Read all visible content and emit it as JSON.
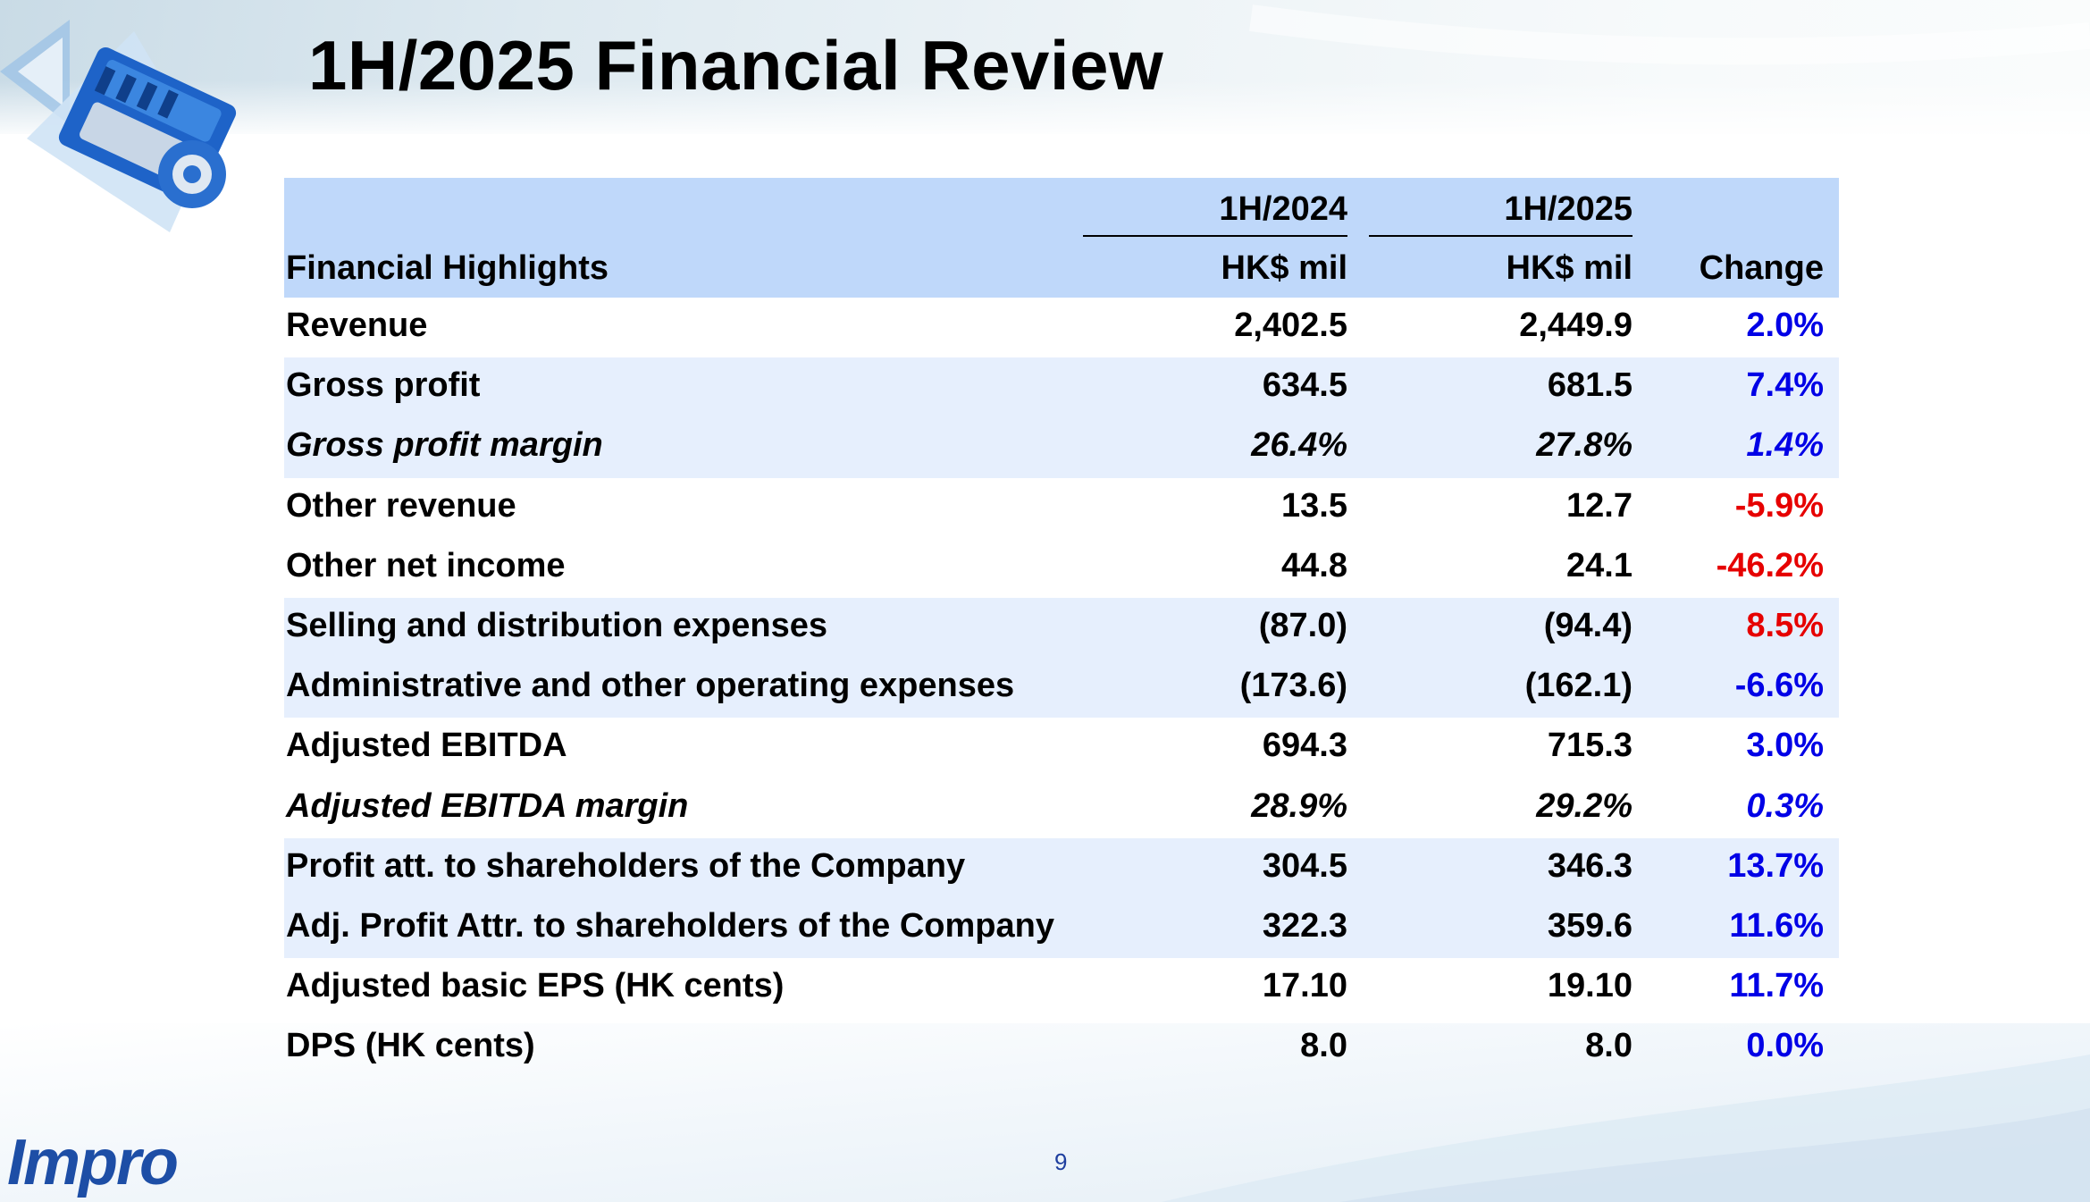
{
  "title": "1H/2025 Financial Review",
  "brand": "Impro",
  "page_number": "9",
  "colors": {
    "positive": "#0000e6",
    "negative": "#e60000",
    "header_band": "#bfd8fa",
    "row_shade": "#e6effd",
    "brand": "#1d4ea6"
  },
  "table": {
    "header": {
      "label": "Financial Highlights",
      "period1": "1H/2024",
      "period2": "1H/2025",
      "unit1": "HK$ mil",
      "unit2": "HK$ mil",
      "change": "Change"
    },
    "rows": [
      {
        "label": "Revenue",
        "v2024": "2,402.5",
        "v2025": "2,449.9",
        "change": "2.0%",
        "direction": "pos",
        "italic": false,
        "shade": false
      },
      {
        "label": "Gross profit",
        "v2024": "634.5",
        "v2025": "681.5",
        "change": "7.4%",
        "direction": "pos",
        "italic": false,
        "shade": true
      },
      {
        "label": "Gross profit margin",
        "v2024": "26.4%",
        "v2025": "27.8%",
        "change": "1.4%",
        "direction": "pos",
        "italic": true,
        "shade": true
      },
      {
        "label": "Other revenue",
        "v2024": "13.5",
        "v2025": "12.7",
        "change": "-5.9%",
        "direction": "neg",
        "italic": false,
        "shade": false
      },
      {
        "label": "Other net income",
        "v2024": "44.8",
        "v2025": "24.1",
        "change": "-46.2%",
        "direction": "neg",
        "italic": false,
        "shade": false
      },
      {
        "label": "Selling and distribution expenses",
        "v2024": "(87.0)",
        "v2025": "(94.4)",
        "change": "8.5%",
        "direction": "neg",
        "italic": false,
        "shade": true
      },
      {
        "label": "Administrative and other operating expenses",
        "v2024": "(173.6)",
        "v2025": "(162.1)",
        "change": "-6.6%",
        "direction": "pos",
        "italic": false,
        "shade": true
      },
      {
        "label": "Adjusted EBITDA",
        "v2024": "694.3",
        "v2025": "715.3",
        "change": "3.0%",
        "direction": "pos",
        "italic": false,
        "shade": false
      },
      {
        "label": "Adjusted EBITDA margin",
        "v2024": "28.9%",
        "v2025": "29.2%",
        "change": "0.3%",
        "direction": "pos",
        "italic": true,
        "shade": false
      },
      {
        "label": "Profit att. to shareholders of the Company",
        "v2024": "304.5",
        "v2025": "346.3",
        "change": "13.7%",
        "direction": "pos",
        "italic": false,
        "shade": true
      },
      {
        "label": "Adj. Profit Attr. to shareholders of the Company",
        "v2024": "322.3",
        "v2025": "359.6",
        "change": "11.6%",
        "direction": "pos",
        "italic": false,
        "shade": true
      },
      {
        "label": "Adjusted basic EPS (HK cents)",
        "v2024": "17.10",
        "v2025": "19.10",
        "change": "11.7%",
        "direction": "pos",
        "italic": false,
        "shade": false
      },
      {
        "label": "DPS (HK cents)",
        "v2024": "8.0",
        "v2025": "8.0",
        "change": "0.0%",
        "direction": "pos",
        "italic": false,
        "shade": false
      }
    ]
  }
}
